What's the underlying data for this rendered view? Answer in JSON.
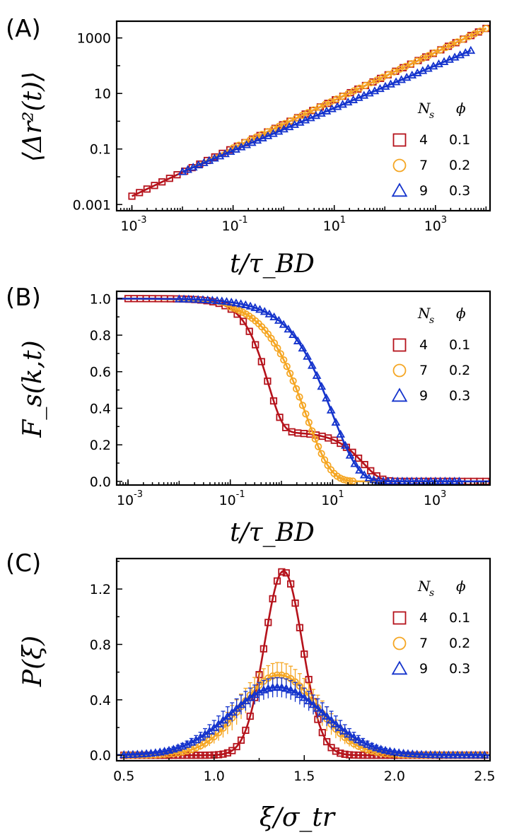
{
  "colors": {
    "s4": "#b5121b",
    "s7": "#f5a623",
    "s9": "#1433cc",
    "errS7": "#f5a623",
    "errS9": "#1433cc"
  },
  "legend": {
    "header_ns": "N",
    "header_ns_sub": "s",
    "header_phi": "ϕ",
    "rows": [
      {
        "ns": "4",
        "phi": "0.1",
        "marker": "square"
      },
      {
        "ns": "7",
        "phi": "0.2",
        "marker": "circle"
      },
      {
        "ns": "9",
        "phi": "0.3",
        "marker": "triangle"
      }
    ]
  },
  "chart_data": [
    {
      "panel": "(A)",
      "type": "line",
      "xscale": "log",
      "yscale": "log",
      "xlabel": "t/τ_BD",
      "ylabel": "⟨Δr²(t)⟩",
      "xlim": [
        0.0005,
        12000
      ],
      "ylim": [
        0.0006,
        4000
      ],
      "xticks": [
        {
          "base": "10",
          "exp": "-3",
          "v": 0.001
        },
        {
          "base": "10",
          "exp": "-1",
          "v": 0.1
        },
        {
          "base": "10",
          "exp": "1",
          "v": 10
        },
        {
          "base": "10",
          "exp": "3",
          "v": 1000
        }
      ],
      "yticks": [
        {
          "label": "0.001",
          "v": 0.001
        },
        {
          "label": "0.1",
          "v": 0.1
        },
        {
          "label": "10",
          "v": 10
        },
        {
          "label": "1000",
          "v": 1000
        }
      ],
      "series": [
        {
          "name": "N_s=4, ϕ=0.1",
          "marker": "square",
          "color": "s4",
          "line": {
            "type": "loglog",
            "x0": 0.001,
            "x1": 10000,
            "y0": 0.002,
            "y1": 2200
          },
          "markers": {
            "spacing": "log",
            "x0": 0.001,
            "x1": 10000,
            "count": 48
          }
        },
        {
          "name": "N_s=7, ϕ=0.2",
          "marker": "circle",
          "color": "s7",
          "line": {
            "type": "loglog",
            "x0": 0.01,
            "x1": 10000,
            "y0": 0.015,
            "y1": 2200
          },
          "markers": {
            "spacing": "log",
            "x0": 0.1,
            "x1": 10000,
            "count": 45
          }
        },
        {
          "name": "N_s=9, ϕ=0.3",
          "marker": "triangle",
          "color": "s9",
          "line": {
            "type": "loglog",
            "x0": 0.01,
            "x1": 5000,
            "y0": 0.015,
            "y1": 350
          },
          "markers": {
            "spacing": "log",
            "x0": 0.01,
            "x1": 5000,
            "count": 55
          }
        }
      ]
    },
    {
      "panel": "(B)",
      "type": "line",
      "xscale": "log",
      "yscale": "linear",
      "xlabel": "t/τ_BD",
      "ylabel": "F_s(k,t)",
      "xlim": [
        0.0006,
        12000
      ],
      "ylim": [
        -0.02,
        1.04
      ],
      "xticks": [
        {
          "base": "10",
          "exp": "-3",
          "v": 0.001
        },
        {
          "base": "10",
          "exp": "-1",
          "v": 0.1
        },
        {
          "base": "10",
          "exp": "1",
          "v": 10
        },
        {
          "base": "10",
          "exp": "3",
          "v": 1000
        }
      ],
      "yticks": [
        {
          "label": "0.0",
          "v": 0.0
        },
        {
          "label": "0.2",
          "v": 0.2
        },
        {
          "label": "0.4",
          "v": 0.4
        },
        {
          "label": "0.6",
          "v": 0.6
        },
        {
          "label": "0.8",
          "v": 0.8
        },
        {
          "label": "1.0",
          "v": 1.0
        }
      ],
      "series": [
        {
          "name": "N_s=4, ϕ=0.1",
          "marker": "square",
          "color": "s4",
          "curve": {
            "model": "two-step",
            "a": 0.73,
            "t1": 0.55,
            "b1": 1.5,
            "t2": 40,
            "b2": 1.3
          },
          "markers": {
            "spacing": "log",
            "x0": 0.001,
            "x1": 10000,
            "count": 60
          }
        },
        {
          "name": "N_s=7, ϕ=0.2",
          "marker": "circle",
          "color": "s7",
          "curve": {
            "model": "stretched",
            "tau": 3.0,
            "beta": 0.9
          },
          "markers": {
            "spacing": "log",
            "x0": 0.1,
            "x1": 25,
            "count": 40
          }
        },
        {
          "name": "N_s=9, ϕ=0.3",
          "marker": "triangle",
          "color": "s9",
          "curve": {
            "model": "stretched",
            "tau": 10.0,
            "beta": 0.85
          },
          "markers": {
            "spacing": "log",
            "x0": 0.01,
            "x1": 3000,
            "count": 60
          }
        }
      ]
    },
    {
      "panel": "(C)",
      "type": "line",
      "xscale": "linear",
      "yscale": "linear",
      "xlabel": "ξ/σ_tr",
      "ylabel": "P(ξ)",
      "xlim": [
        0.46,
        2.53
      ],
      "ylim": [
        -0.04,
        1.42
      ],
      "xticks": [
        {
          "label": "0.5",
          "v": 0.5
        },
        {
          "label": "1.0",
          "v": 1.0
        },
        {
          "label": "1.5",
          "v": 1.5
        },
        {
          "label": "2.0",
          "v": 2.0
        },
        {
          "label": "2.5",
          "v": 2.5
        }
      ],
      "yticks": [
        {
          "label": "0.0",
          "v": 0.0
        },
        {
          "label": "0.4",
          "v": 0.4
        },
        {
          "label": "0.8",
          "v": 0.8
        },
        {
          "label": "1.2",
          "v": 1.2
        }
      ],
      "series": [
        {
          "name": "N_s=4, ϕ=0.1",
          "marker": "square",
          "color": "s4",
          "curve": {
            "model": "gaussian",
            "amp": 1.33,
            "mu": 1.385,
            "sigma": 0.105
          },
          "markers": {
            "spacing": "linear",
            "x0": 0.5,
            "x1": 2.5,
            "step": 0.025
          },
          "errorbars": false
        },
        {
          "name": "N_s=7, ϕ=0.2",
          "marker": "circle",
          "color": "s7",
          "curve": {
            "model": "gaussian",
            "amp": 0.58,
            "mu": 1.36,
            "sigma": 0.21
          },
          "markers": {
            "spacing": "linear",
            "x0": 0.5,
            "x1": 2.5,
            "step": 0.025
          },
          "errorbars": true,
          "errorsize": 0.09
        },
        {
          "name": "N_s=9, ϕ=0.3",
          "marker": "triangle",
          "color": "s9",
          "curve": {
            "model": "gaussian",
            "amp": 0.49,
            "mu": 1.35,
            "sigma": 0.26
          },
          "markers": {
            "spacing": "linear",
            "x0": 0.5,
            "x1": 2.5,
            "step": 0.025
          },
          "errorbars": true,
          "errorsize": 0.07
        }
      ]
    }
  ]
}
